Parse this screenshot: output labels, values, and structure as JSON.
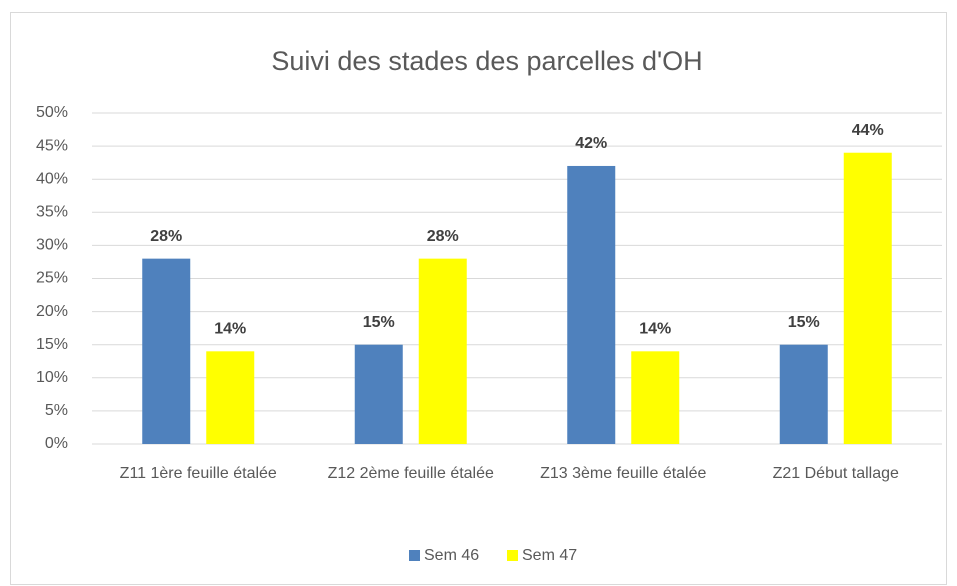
{
  "chart_data": {
    "type": "bar",
    "title": "Suivi des stades des parcelles d'OH",
    "categories": [
      "Z11 1ère feuille étalée",
      "Z12 2ème feuille étalée",
      "Z13 3ème feuille étalée",
      "Z21 Début tallage"
    ],
    "series": [
      {
        "name": "Sem 46",
        "color": "#4f81bd",
        "values": [
          28,
          15,
          42,
          15
        ],
        "value_labels": [
          "28%",
          "15%",
          "42%",
          "15%"
        ]
      },
      {
        "name": "Sem 47",
        "color": "#ffff00",
        "values": [
          14,
          28,
          14,
          44
        ],
        "value_labels": [
          "14%",
          "28%",
          "14%",
          "44%"
        ]
      }
    ],
    "ylim": [
      0,
      50
    ],
    "yticks": [
      {
        "value": 0,
        "label": "0%"
      },
      {
        "value": 5,
        "label": "5%"
      },
      {
        "value": 10,
        "label": "10%"
      },
      {
        "value": 15,
        "label": "15%"
      },
      {
        "value": 20,
        "label": "20%"
      },
      {
        "value": 25,
        "label": "25%"
      },
      {
        "value": 30,
        "label": "30%"
      },
      {
        "value": 35,
        "label": "35%"
      },
      {
        "value": 40,
        "label": "40%"
      },
      {
        "value": 45,
        "label": "45%"
      },
      {
        "value": 50,
        "label": "50%"
      }
    ],
    "grid": true,
    "legend": "bottom"
  }
}
